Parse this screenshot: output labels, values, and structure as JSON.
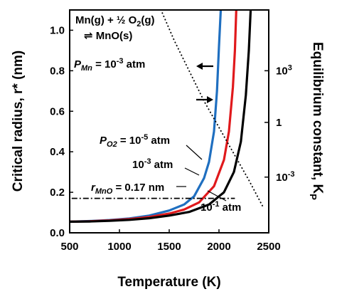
{
  "chart_data": {
    "type": "line",
    "xlabel": "Temperature (K)",
    "ylabel": "Critical radius, r* (nm)",
    "y2label": "Equilibrium constant, K",
    "y2label_sub": "P",
    "xlim": [
      500,
      2500
    ],
    "ylim": [
      0,
      1.1
    ],
    "xticks": [
      "500",
      "1000",
      "1500",
      "2000",
      "2500"
    ],
    "yticks": [
      "0.0",
      "0.2",
      "0.4",
      "0.6",
      "0.8",
      "1.0"
    ],
    "y2ticks": [
      {
        "base": "10",
        "exp": "3",
        "y": 0.8
      },
      {
        "base": "1",
        "exp": "",
        "y": 0.545
      },
      {
        "base": "10",
        "exp": "-3",
        "y": 0.275
      }
    ],
    "grid": false,
    "series": [
      {
        "color": "#1f6fc0",
        "x": [
          500,
          700,
          900,
          1100,
          1300,
          1500,
          1650,
          1750,
          1850,
          1900,
          1950,
          1980,
          2000,
          2020
        ],
        "y": [
          0.055,
          0.058,
          0.063,
          0.071,
          0.085,
          0.11,
          0.14,
          0.18,
          0.27,
          0.35,
          0.5,
          0.7,
          0.92,
          1.12
        ]
      },
      {
        "color": "#e0191c",
        "x": [
          500,
          700,
          900,
          1100,
          1300,
          1500,
          1650,
          1800,
          1950,
          2050,
          2100,
          2140,
          2160,
          2175
        ],
        "y": [
          0.055,
          0.057,
          0.061,
          0.068,
          0.078,
          0.095,
          0.115,
          0.15,
          0.23,
          0.36,
          0.5,
          0.72,
          0.9,
          1.12
        ]
      },
      {
        "color": "#000000",
        "x": [
          500,
          700,
          900,
          1100,
          1300,
          1500,
          1700,
          1900,
          2050,
          2150,
          2220,
          2270,
          2300,
          2320
        ],
        "y": [
          0.055,
          0.056,
          0.059,
          0.064,
          0.072,
          0.085,
          0.103,
          0.14,
          0.2,
          0.3,
          0.45,
          0.68,
          0.9,
          1.12
        ]
      },
      {
        "color": "#000000",
        "dash": "dotted",
        "x": [
          1400,
          1550,
          1700,
          1850,
          2000,
          2150,
          2300,
          2440
        ],
        "y": [
          1.12,
          0.95,
          0.8,
          0.65,
          0.52,
          0.39,
          0.26,
          0.13
        ]
      },
      {
        "color": "#000000",
        "dash": "dashdot",
        "x": [
          520,
          2160
        ],
        "y": [
          0.17,
          0.17
        ]
      }
    ],
    "annotations": {
      "reaction_line1": "Mn(g) + ½ O",
      "reaction_sub1": "2",
      "reaction_line1_end": "(g)",
      "reaction_line2": "⇌ MnO(s)",
      "pmn_label": "P",
      "pmn_sub": "Mn",
      "pmn_value": " = 10",
      "pmn_exp": "-3",
      "pmn_unit": " atm",
      "po2_label": "P",
      "po2_sub": "O2",
      "po2_value": " = 10",
      "po2_exp": "-5",
      "po2_unit": " atm",
      "mid_value": "10",
      "mid_exp": "-3",
      "mid_unit": " atm",
      "low_value": "10",
      "low_exp": "-1",
      "low_unit": " atm",
      "rmno_label": "r",
      "rmno_sub": "MnO",
      "rmno_value": " = 0.17 nm"
    }
  }
}
